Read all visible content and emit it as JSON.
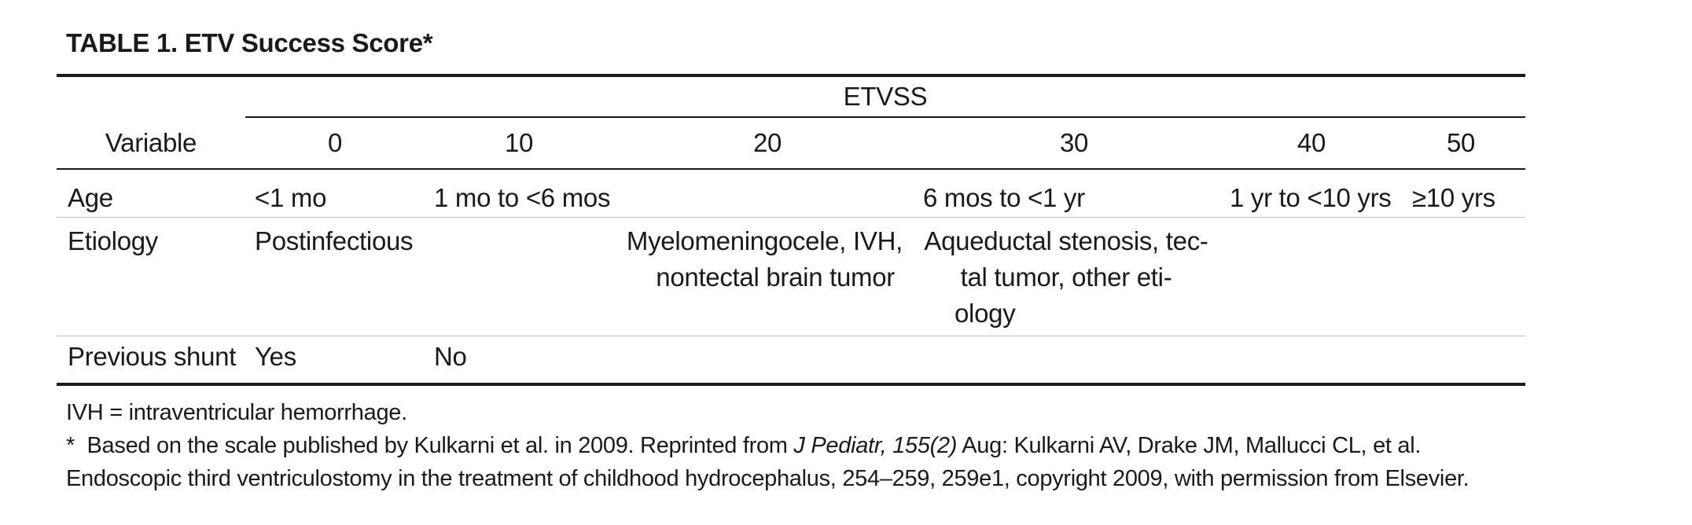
{
  "table": {
    "title": "TABLE 1. ETV Success Score*",
    "group_header": "ETVSS",
    "variable_header": "Variable",
    "score_headers": [
      "0",
      "10",
      "20",
      "30",
      "40",
      "50"
    ],
    "rows": [
      {
        "variable": "Age",
        "cells": [
          "<1 mo",
          "1 mo to <6 mos",
          "",
          "6 mos to <1 yr",
          "1 yr to <10 yrs",
          "≥10 yrs"
        ]
      },
      {
        "variable": "Etiology",
        "cells": [
          "Postinfectious",
          "",
          "Myelomeningocele, IVH, nontectal brain tumor",
          "Aqueductal stenosis, tectal tumor, other etiology",
          "",
          ""
        ],
        "cell_lines": {
          "c20": [
            "Myelomeningocele, IVH,",
            "nontectal brain tumor"
          ],
          "c30": [
            "Aqueductal stenosis, tec-",
            "tal tumor, other eti-",
            "ology"
          ]
        }
      },
      {
        "variable": "Previous shunt",
        "cells": [
          "Yes",
          "No",
          "",
          "",
          "",
          ""
        ]
      }
    ]
  },
  "footnotes": {
    "abbreviation": "IVH = intraventricular hemorrhage.",
    "note_marker": "*",
    "note_text_1": "Based on the scale published by Kulkarni et al. in 2009. Reprinted from ",
    "note_journal": "J Pediatr, 155(2)",
    "note_text_2": " Aug: Kulkarni AV, Drake JM, Mallucci CL, et al.",
    "note_line_2": "Endoscopic third ventriculostomy in the treatment of childhood hydrocephalus, 254–259, 259e1, copyright 2009, with permission from Elsevier."
  }
}
